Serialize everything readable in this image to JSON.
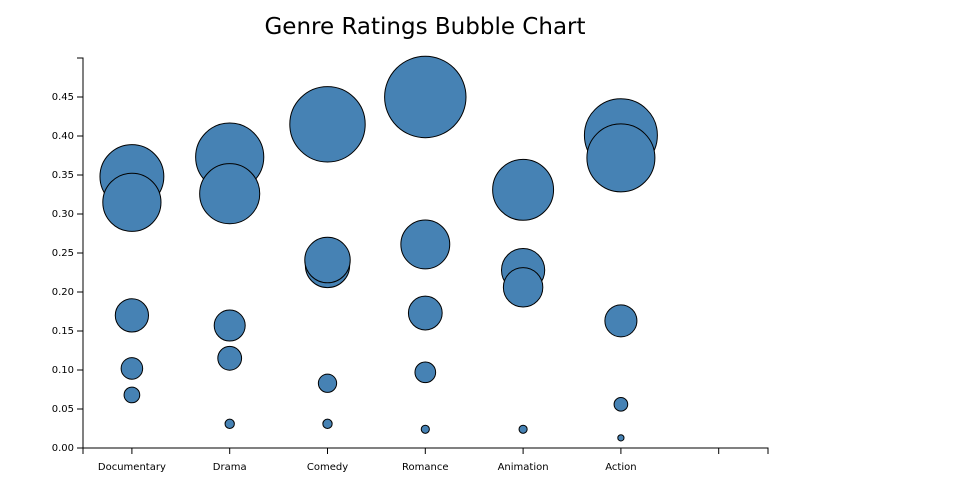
{
  "chart_data": {
    "type": "scatter",
    "title": "Genre Ratings Bubble Chart",
    "xlabel": "",
    "ylabel": "",
    "categories": [
      "Documentary",
      "Drama",
      "Comedy",
      "Romance",
      "Animation",
      "Action"
    ],
    "ylim": [
      0,
      0.5
    ],
    "yticks": [
      "0.00",
      "0.05",
      "0.10",
      "0.15",
      "0.20",
      "0.25",
      "0.30",
      "0.35",
      "0.40",
      "0.45"
    ],
    "grid": false,
    "legend": "none",
    "bubble_color": "#4682b4",
    "bubble_stroke": "#000000",
    "points": [
      {
        "category": "Documentary",
        "y": 0.348
      },
      {
        "category": "Documentary",
        "y": 0.315
      },
      {
        "category": "Documentary",
        "y": 0.17
      },
      {
        "category": "Documentary",
        "y": 0.102
      },
      {
        "category": "Documentary",
        "y": 0.068
      },
      {
        "category": "Drama",
        "y": 0.373
      },
      {
        "category": "Drama",
        "y": 0.326
      },
      {
        "category": "Drama",
        "y": 0.157
      },
      {
        "category": "Drama",
        "y": 0.115
      },
      {
        "category": "Drama",
        "y": 0.031
      },
      {
        "category": "Comedy",
        "y": 0.415
      },
      {
        "category": "Comedy",
        "y": 0.234
      },
      {
        "category": "Comedy",
        "y": 0.241
      },
      {
        "category": "Comedy",
        "y": 0.083
      },
      {
        "category": "Comedy",
        "y": 0.031
      },
      {
        "category": "Romance",
        "y": 0.45
      },
      {
        "category": "Romance",
        "y": 0.261
      },
      {
        "category": "Romance",
        "y": 0.173
      },
      {
        "category": "Romance",
        "y": 0.097
      },
      {
        "category": "Romance",
        "y": 0.024
      },
      {
        "category": "Animation",
        "y": 0.331
      },
      {
        "category": "Animation",
        "y": 0.228
      },
      {
        "category": "Animation",
        "y": 0.206
      },
      {
        "category": "Animation",
        "y": 0.024
      },
      {
        "category": "Action",
        "y": 0.401
      },
      {
        "category": "Action",
        "y": 0.372
      },
      {
        "category": "Action",
        "y": 0.163
      },
      {
        "category": "Action",
        "y": 0.056
      },
      {
        "category": "Action",
        "y": 0.013
      }
    ]
  }
}
